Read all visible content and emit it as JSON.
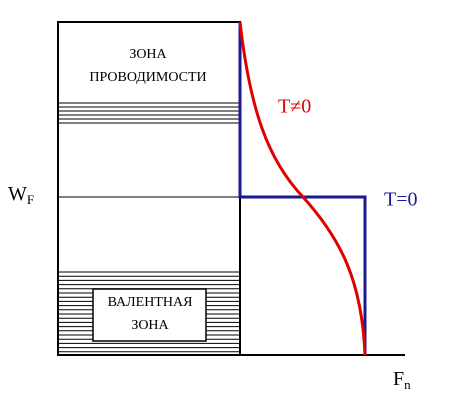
{
  "conduction_band": {
    "line1": "ЗОНА",
    "line2": "ПРОВОДИМОСТИ"
  },
  "valence_band": {
    "line1": "ВАЛЕНТНАЯ",
    "line2": "ЗОНА"
  },
  "fermi_level": {
    "symbol": "W",
    "subscript": "F"
  },
  "curve_t_nonzero": "T≠0",
  "curve_t_zero": "T=0",
  "x_axis": {
    "symbol": "F",
    "subscript": "n"
  }
}
